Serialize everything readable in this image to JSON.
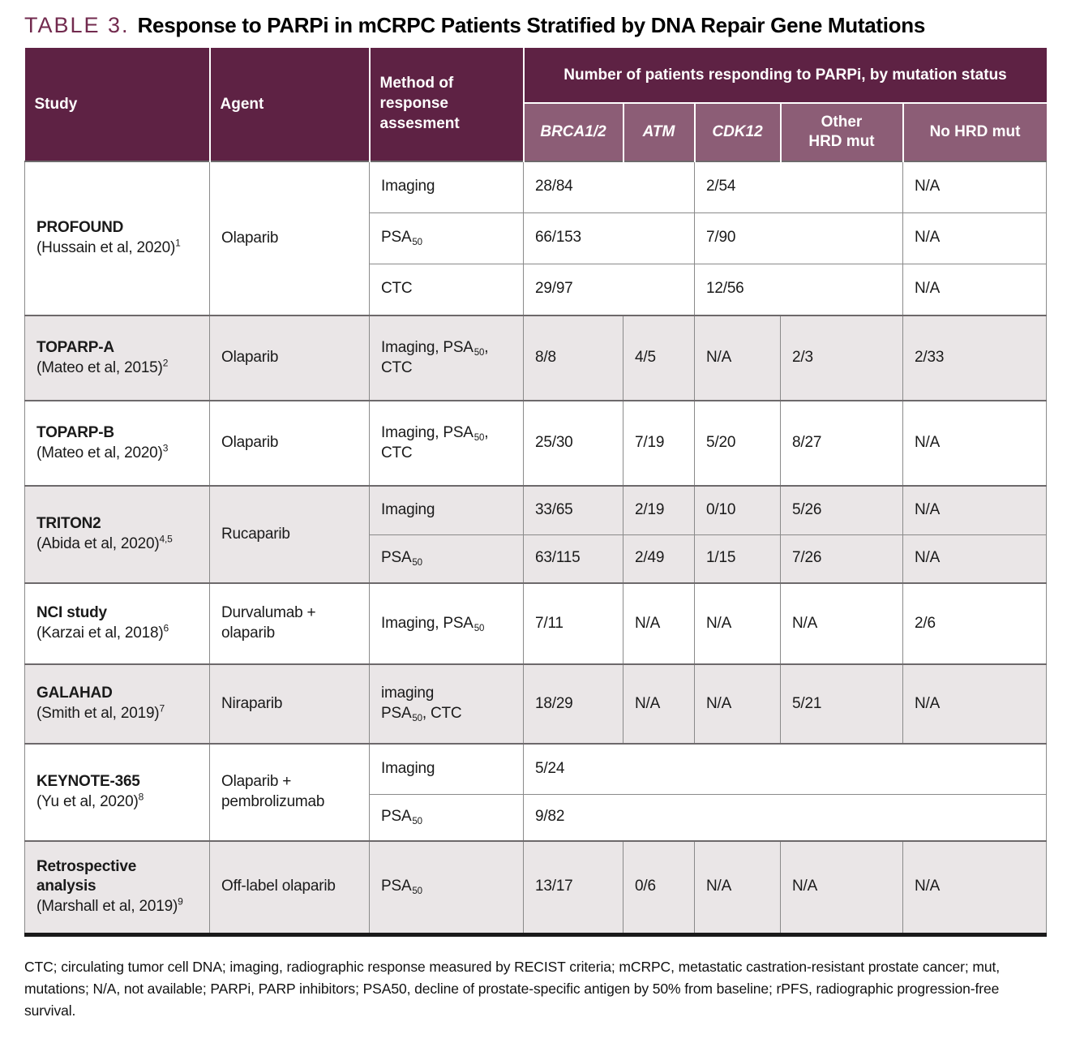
{
  "title": {
    "label": "TABLE 3.",
    "text": "Response to PARPi in mCRPC Patients Stratified by DNA Repair Gene Mutations"
  },
  "colors": {
    "header-bg": "#5e2244",
    "subheader-bg": "#8c5d76",
    "row-shade": "#eae6e7",
    "title-accent": "#722a4e",
    "grid-line": "#8a8a8a",
    "group-line": "#6d696b",
    "bottom-bar": "#1a1a1a"
  },
  "header": {
    "study": "Study",
    "agent": "Agent",
    "method": "Method of\nresponse\nassesment",
    "span": "Number of patients responding to PARPi, by mutation status",
    "subcols": [
      {
        "label": "BRCA1/2",
        "italic": true
      },
      {
        "label": "ATM",
        "italic": true
      },
      {
        "label": "CDK12",
        "italic": true
      },
      {
        "label": "Other\nHRD mut",
        "italic": false
      },
      {
        "label": "No HRD mut",
        "italic": false
      }
    ]
  },
  "groups": [
    {
      "study_name": "PROFOUND",
      "study_cite": "(Hussain et al, 2020)",
      "study_refs": "1",
      "agent": "Olaparib",
      "shaded": false,
      "subrows": [
        {
          "method": [
            {
              "t": "Imaging"
            }
          ],
          "cells": [
            {
              "t": "28/84",
              "span": 2
            },
            {
              "t": "2/54",
              "span": 2
            },
            {
              "t": "N/A"
            }
          ]
        },
        {
          "method": [
            {
              "t": "PSA"
            },
            {
              "t": "50",
              "sub": true
            }
          ],
          "cells": [
            {
              "t": "66/153",
              "span": 2
            },
            {
              "t": "7/90",
              "span": 2
            },
            {
              "t": "N/A"
            }
          ]
        },
        {
          "method": [
            {
              "t": "CTC"
            }
          ],
          "cells": [
            {
              "t": "29/97",
              "span": 2
            },
            {
              "t": "12/56",
              "span": 2
            },
            {
              "t": "N/A"
            }
          ]
        }
      ]
    },
    {
      "study_name": "TOPARP-A",
      "study_cite": "(Mateo et al, 2015)",
      "study_refs": "2",
      "agent": "Olaparib",
      "shaded": true,
      "subrows": [
        {
          "method": [
            {
              "t": "Imaging, PSA"
            },
            {
              "t": "50",
              "sub": true
            },
            {
              "t": ",\nCTC"
            }
          ],
          "cells": [
            {
              "t": "8/8"
            },
            {
              "t": "4/5"
            },
            {
              "t": "N/A"
            },
            {
              "t": "2/3"
            },
            {
              "t": "2/33"
            }
          ]
        }
      ]
    },
    {
      "study_name": "TOPARP-B",
      "study_cite": "(Mateo et al, 2020)",
      "study_refs": "3",
      "agent": "Olaparib",
      "shaded": false,
      "subrows": [
        {
          "method": [
            {
              "t": "Imaging, PSA"
            },
            {
              "t": "50",
              "sub": true
            },
            {
              "t": ",\nCTC"
            }
          ],
          "cells": [
            {
              "t": "25/30"
            },
            {
              "t": "7/19"
            },
            {
              "t": "5/20"
            },
            {
              "t": "8/27"
            },
            {
              "t": "N/A"
            }
          ]
        }
      ]
    },
    {
      "study_name": "TRITON2",
      "study_cite": "(Abida et al, 2020)",
      "study_refs": "4,5",
      "agent": "Rucaparib",
      "shaded": true,
      "subrows": [
        {
          "method": [
            {
              "t": "Imaging"
            }
          ],
          "cells": [
            {
              "t": "33/65"
            },
            {
              "t": "2/19"
            },
            {
              "t": "0/10"
            },
            {
              "t": "5/26"
            },
            {
              "t": "N/A"
            }
          ]
        },
        {
          "method": [
            {
              "t": "PSA"
            },
            {
              "t": "50",
              "sub": true
            }
          ],
          "cells": [
            {
              "t": "63/115"
            },
            {
              "t": "2/49"
            },
            {
              "t": "1/15"
            },
            {
              "t": "7/26"
            },
            {
              "t": "N/A"
            }
          ]
        }
      ]
    },
    {
      "study_name": "NCI study",
      "study_cite": "(Karzai et al, 2018)",
      "study_refs": "6",
      "agent": "Durvalumab +\nolaparib",
      "shaded": false,
      "subrows": [
        {
          "method": [
            {
              "t": "Imaging, PSA"
            },
            {
              "t": "50",
              "sub": true
            }
          ],
          "cells": [
            {
              "t": "7/11"
            },
            {
              "t": "N/A"
            },
            {
              "t": "N/A"
            },
            {
              "t": "N/A"
            },
            {
              "t": "2/6"
            }
          ]
        }
      ]
    },
    {
      "study_name": "GALAHAD",
      "study_cite": "(Smith et al, 2019)",
      "study_refs": "7",
      "agent": "Niraparib",
      "shaded": true,
      "subrows": [
        {
          "method": [
            {
              "t": "imaging\nPSA"
            },
            {
              "t": "50",
              "sub": true
            },
            {
              "t": ", CTC"
            }
          ],
          "cells": [
            {
              "t": "18/29"
            },
            {
              "t": "N/A"
            },
            {
              "t": "N/A"
            },
            {
              "t": "5/21"
            },
            {
              "t": "N/A"
            }
          ]
        }
      ]
    },
    {
      "study_name": "KEYNOTE-365",
      "study_cite": "(Yu et al, 2020)",
      "study_refs": "8",
      "agent": "Olaparib +\npembrolizumab",
      "shaded": false,
      "subrows": [
        {
          "method": [
            {
              "t": "Imaging"
            }
          ],
          "cells": [
            {
              "t": "5/24",
              "span": 5
            }
          ]
        },
        {
          "method": [
            {
              "t": "PSA"
            },
            {
              "t": "50",
              "sub": true
            }
          ],
          "cells": [
            {
              "t": "9/82",
              "span": 5
            }
          ]
        }
      ]
    },
    {
      "study_name": "Retrospective\nanalysis",
      "study_cite": "(Marshall et al, 2019)",
      "study_refs": "9",
      "agent": "Off-label olaparib",
      "shaded": true,
      "subrows": [
        {
          "method": [
            {
              "t": "PSA"
            },
            {
              "t": "50",
              "sub": true
            }
          ],
          "cells": [
            {
              "t": "13/17"
            },
            {
              "t": "0/6"
            },
            {
              "t": "N/A"
            },
            {
              "t": "N/A"
            },
            {
              "t": "N/A"
            }
          ]
        }
      ]
    }
  ],
  "footnote": "CTC; circulating tumor cell DNA; imaging, radiographic response measured by RECIST criteria; mCRPC, metastatic castration-resistant prostate cancer; mut, mutations; N/A, not available; PARPi, PARP inhibitors; PSA50, decline of prostate-specific antigen by 50% from baseline; rPFS, radiographic progression-free survival."
}
